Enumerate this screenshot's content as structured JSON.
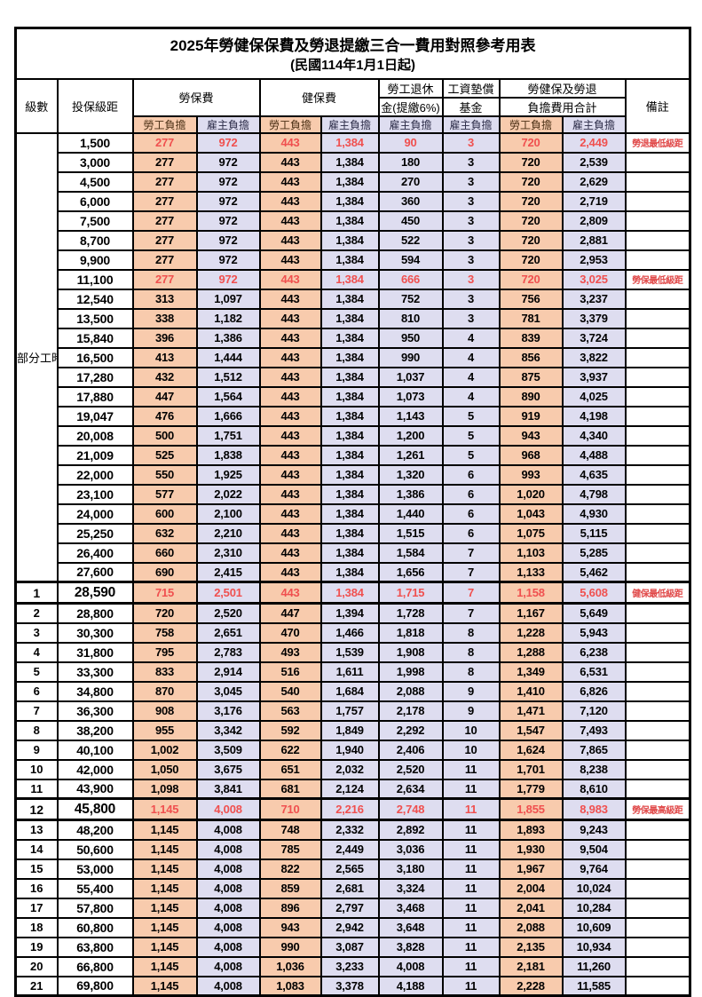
{
  "title": "2025年勞健保保費及勞退提繳三合一費用對照參考用表",
  "subtitle": "(民國114年1月1日起)",
  "header": {
    "level": "級數",
    "bracket": "投保級距",
    "labor_fee": "勞保費",
    "health_fee": "健保費",
    "pension_l1": "勞工退休",
    "pension_l2": "金(提繳6%)",
    "wage_fund_l1": "工資墊償",
    "wage_fund_l2": "基金",
    "total_l1": "勞健保及勞退",
    "total_l2": "負擔費用合計",
    "remark": "備註",
    "employee_share": "勞工負擔",
    "employer_share": "雇主負擔"
  },
  "part_time_label": "部分工時",
  "part_time_rowspan": 23,
  "thick_top_rows": [
    23,
    24,
    34,
    35
  ],
  "colors": {
    "employee_bg": "#F8CBAD",
    "employer_bg": "#DEDDF0",
    "highlight_value": "#F0504F",
    "remark_red": "#E04848"
  },
  "rows": [
    {
      "lv": "",
      "br": "1,500",
      "v": [
        "277",
        "972",
        "443",
        "1,384",
        "90",
        "3",
        "720",
        "2,449"
      ],
      "rm": "勞退最低級距",
      "red": true,
      "big": false
    },
    {
      "lv": "",
      "br": "3,000",
      "v": [
        "277",
        "972",
        "443",
        "1,384",
        "180",
        "3",
        "720",
        "2,539"
      ],
      "rm": "",
      "red": false,
      "big": false
    },
    {
      "lv": "",
      "br": "4,500",
      "v": [
        "277",
        "972",
        "443",
        "1,384",
        "270",
        "3",
        "720",
        "2,629"
      ],
      "rm": "",
      "red": false,
      "big": false
    },
    {
      "lv": "",
      "br": "6,000",
      "v": [
        "277",
        "972",
        "443",
        "1,384",
        "360",
        "3",
        "720",
        "2,719"
      ],
      "rm": "",
      "red": false,
      "big": false
    },
    {
      "lv": "",
      "br": "7,500",
      "v": [
        "277",
        "972",
        "443",
        "1,384",
        "450",
        "3",
        "720",
        "2,809"
      ],
      "rm": "",
      "red": false,
      "big": false
    },
    {
      "lv": "",
      "br": "8,700",
      "v": [
        "277",
        "972",
        "443",
        "1,384",
        "522",
        "3",
        "720",
        "2,881"
      ],
      "rm": "",
      "red": false,
      "big": false
    },
    {
      "lv": "",
      "br": "9,900",
      "v": [
        "277",
        "972",
        "443",
        "1,384",
        "594",
        "3",
        "720",
        "2,953"
      ],
      "rm": "",
      "red": false,
      "big": false
    },
    {
      "lv": "",
      "br": "11,100",
      "v": [
        "277",
        "972",
        "443",
        "1,384",
        "666",
        "3",
        "720",
        "3,025"
      ],
      "rm": "勞保最低級距",
      "red": true,
      "big": false
    },
    {
      "lv": "",
      "br": "12,540",
      "v": [
        "313",
        "1,097",
        "443",
        "1,384",
        "752",
        "3",
        "756",
        "3,237"
      ],
      "rm": "",
      "red": false,
      "big": false
    },
    {
      "lv": "",
      "br": "13,500",
      "v": [
        "338",
        "1,182",
        "443",
        "1,384",
        "810",
        "3",
        "781",
        "3,379"
      ],
      "rm": "",
      "red": false,
      "big": false
    },
    {
      "lv": "",
      "br": "15,840",
      "v": [
        "396",
        "1,386",
        "443",
        "1,384",
        "950",
        "4",
        "839",
        "3,724"
      ],
      "rm": "",
      "red": false,
      "big": false
    },
    {
      "lv": "",
      "br": "16,500",
      "v": [
        "413",
        "1,444",
        "443",
        "1,384",
        "990",
        "4",
        "856",
        "3,822"
      ],
      "rm": "",
      "red": false,
      "big": false
    },
    {
      "lv": "",
      "br": "17,280",
      "v": [
        "432",
        "1,512",
        "443",
        "1,384",
        "1,037",
        "4",
        "875",
        "3,937"
      ],
      "rm": "",
      "red": false,
      "big": false
    },
    {
      "lv": "",
      "br": "17,880",
      "v": [
        "447",
        "1,564",
        "443",
        "1,384",
        "1,073",
        "4",
        "890",
        "4,025"
      ],
      "rm": "",
      "red": false,
      "big": false
    },
    {
      "lv": "",
      "br": "19,047",
      "v": [
        "476",
        "1,666",
        "443",
        "1,384",
        "1,143",
        "5",
        "919",
        "4,198"
      ],
      "rm": "",
      "red": false,
      "big": false
    },
    {
      "lv": "",
      "br": "20,008",
      "v": [
        "500",
        "1,751",
        "443",
        "1,384",
        "1,200",
        "5",
        "943",
        "4,340"
      ],
      "rm": "",
      "red": false,
      "big": false
    },
    {
      "lv": "",
      "br": "21,009",
      "v": [
        "525",
        "1,838",
        "443",
        "1,384",
        "1,261",
        "5",
        "968",
        "4,488"
      ],
      "rm": "",
      "red": false,
      "big": false
    },
    {
      "lv": "",
      "br": "22,000",
      "v": [
        "550",
        "1,925",
        "443",
        "1,384",
        "1,320",
        "6",
        "993",
        "4,635"
      ],
      "rm": "",
      "red": false,
      "big": false
    },
    {
      "lv": "",
      "br": "23,100",
      "v": [
        "577",
        "2,022",
        "443",
        "1,384",
        "1,386",
        "6",
        "1,020",
        "4,798"
      ],
      "rm": "",
      "red": false,
      "big": false
    },
    {
      "lv": "",
      "br": "24,000",
      "v": [
        "600",
        "2,100",
        "443",
        "1,384",
        "1,440",
        "6",
        "1,043",
        "4,930"
      ],
      "rm": "",
      "red": false,
      "big": false
    },
    {
      "lv": "",
      "br": "25,250",
      "v": [
        "632",
        "2,210",
        "443",
        "1,384",
        "1,515",
        "6",
        "1,075",
        "5,115"
      ],
      "rm": "",
      "red": false,
      "big": false
    },
    {
      "lv": "",
      "br": "26,400",
      "v": [
        "660",
        "2,310",
        "443",
        "1,384",
        "1,584",
        "7",
        "1,103",
        "5,285"
      ],
      "rm": "",
      "red": false,
      "big": false
    },
    {
      "lv": "",
      "br": "27,600",
      "v": [
        "690",
        "2,415",
        "443",
        "1,384",
        "1,656",
        "7",
        "1,133",
        "5,462"
      ],
      "rm": "",
      "red": false,
      "big": false
    },
    {
      "lv": "1",
      "br": "28,590",
      "v": [
        "715",
        "2,501",
        "443",
        "1,384",
        "1,715",
        "7",
        "1,158",
        "5,608"
      ],
      "rm": "健保最低級距",
      "red": true,
      "big": true
    },
    {
      "lv": "2",
      "br": "28,800",
      "v": [
        "720",
        "2,520",
        "447",
        "1,394",
        "1,728",
        "7",
        "1,167",
        "5,649"
      ],
      "rm": "",
      "red": false,
      "big": false
    },
    {
      "lv": "3",
      "br": "30,300",
      "v": [
        "758",
        "2,651",
        "470",
        "1,466",
        "1,818",
        "8",
        "1,228",
        "5,943"
      ],
      "rm": "",
      "red": false,
      "big": false
    },
    {
      "lv": "4",
      "br": "31,800",
      "v": [
        "795",
        "2,783",
        "493",
        "1,539",
        "1,908",
        "8",
        "1,288",
        "6,238"
      ],
      "rm": "",
      "red": false,
      "big": false
    },
    {
      "lv": "5",
      "br": "33,300",
      "v": [
        "833",
        "2,914",
        "516",
        "1,611",
        "1,998",
        "8",
        "1,349",
        "6,531"
      ],
      "rm": "",
      "red": false,
      "big": false
    },
    {
      "lv": "6",
      "br": "34,800",
      "v": [
        "870",
        "3,045",
        "540",
        "1,684",
        "2,088",
        "9",
        "1,410",
        "6,826"
      ],
      "rm": "",
      "red": false,
      "big": false
    },
    {
      "lv": "7",
      "br": "36,300",
      "v": [
        "908",
        "3,176",
        "563",
        "1,757",
        "2,178",
        "9",
        "1,471",
        "7,120"
      ],
      "rm": "",
      "red": false,
      "big": false
    },
    {
      "lv": "8",
      "br": "38,200",
      "v": [
        "955",
        "3,342",
        "592",
        "1,849",
        "2,292",
        "10",
        "1,547",
        "7,493"
      ],
      "rm": "",
      "red": false,
      "big": false
    },
    {
      "lv": "9",
      "br": "40,100",
      "v": [
        "1,002",
        "3,509",
        "622",
        "1,940",
        "2,406",
        "10",
        "1,624",
        "7,865"
      ],
      "rm": "",
      "red": false,
      "big": false
    },
    {
      "lv": "10",
      "br": "42,000",
      "v": [
        "1,050",
        "3,675",
        "651",
        "2,032",
        "2,520",
        "11",
        "1,701",
        "8,238"
      ],
      "rm": "",
      "red": false,
      "big": false
    },
    {
      "lv": "11",
      "br": "43,900",
      "v": [
        "1,098",
        "3,841",
        "681",
        "2,124",
        "2,634",
        "11",
        "1,779",
        "8,610"
      ],
      "rm": "",
      "red": false,
      "big": false
    },
    {
      "lv": "12",
      "br": "45,800",
      "v": [
        "1,145",
        "4,008",
        "710",
        "2,216",
        "2,748",
        "11",
        "1,855",
        "8,983"
      ],
      "rm": "勞保最高級距",
      "red": true,
      "big": true
    },
    {
      "lv": "13",
      "br": "48,200",
      "v": [
        "1,145",
        "4,008",
        "748",
        "2,332",
        "2,892",
        "11",
        "1,893",
        "9,243"
      ],
      "rm": "",
      "red": false,
      "big": false
    },
    {
      "lv": "14",
      "br": "50,600",
      "v": [
        "1,145",
        "4,008",
        "785",
        "2,449",
        "3,036",
        "11",
        "1,930",
        "9,504"
      ],
      "rm": "",
      "red": false,
      "big": false
    },
    {
      "lv": "15",
      "br": "53,000",
      "v": [
        "1,145",
        "4,008",
        "822",
        "2,565",
        "3,180",
        "11",
        "1,967",
        "9,764"
      ],
      "rm": "",
      "red": false,
      "big": false
    },
    {
      "lv": "16",
      "br": "55,400",
      "v": [
        "1,145",
        "4,008",
        "859",
        "2,681",
        "3,324",
        "11",
        "2,004",
        "10,024"
      ],
      "rm": "",
      "red": false,
      "big": false
    },
    {
      "lv": "17",
      "br": "57,800",
      "v": [
        "1,145",
        "4,008",
        "896",
        "2,797",
        "3,468",
        "11",
        "2,041",
        "10,284"
      ],
      "rm": "",
      "red": false,
      "big": false
    },
    {
      "lv": "18",
      "br": "60,800",
      "v": [
        "1,145",
        "4,008",
        "943",
        "2,942",
        "3,648",
        "11",
        "2,088",
        "10,609"
      ],
      "rm": "",
      "red": false,
      "big": false
    },
    {
      "lv": "19",
      "br": "63,800",
      "v": [
        "1,145",
        "4,008",
        "990",
        "3,087",
        "3,828",
        "11",
        "2,135",
        "10,934"
      ],
      "rm": "",
      "red": false,
      "big": false
    },
    {
      "lv": "20",
      "br": "66,800",
      "v": [
        "1,145",
        "4,008",
        "1,036",
        "3,233",
        "4,008",
        "11",
        "2,181",
        "11,260"
      ],
      "rm": "",
      "red": false,
      "big": false
    },
    {
      "lv": "21",
      "br": "69,800",
      "v": [
        "1,145",
        "4,008",
        "1,083",
        "3,378",
        "4,188",
        "11",
        "2,228",
        "11,585"
      ],
      "rm": "",
      "red": false,
      "big": false
    }
  ]
}
